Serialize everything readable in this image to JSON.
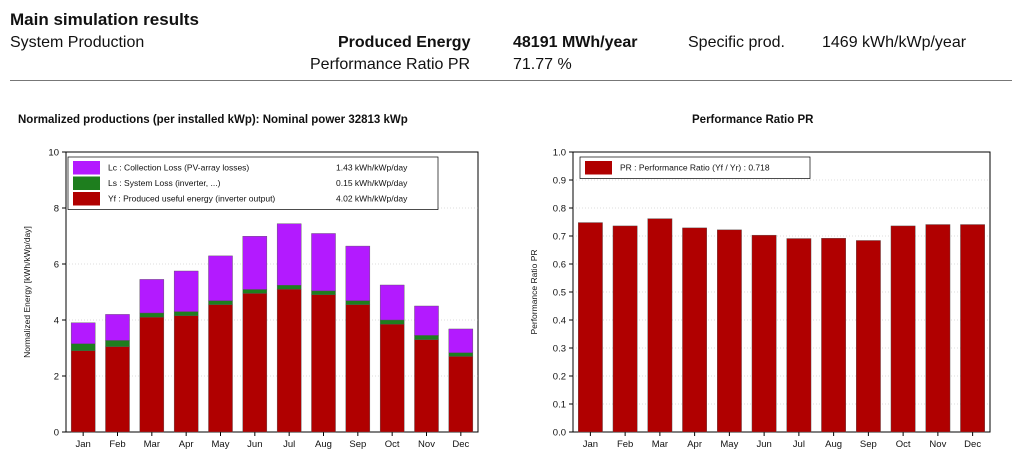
{
  "header": {
    "title": "Main simulation results",
    "subtitle": "System Production",
    "produced_energy_label": "Produced Energy",
    "produced_energy_value": "48191 MWh/year",
    "specific_prod_label": "Specific prod.",
    "specific_prod_value": "1469 kWh/kWp/year",
    "pr_label": "Performance Ratio PR",
    "pr_value": "71.77 %"
  },
  "chart_data": [
    {
      "type": "bar",
      "stacked": true,
      "title": "Normalized productions (per installed kWp):   Nominal power 32813 kWp",
      "xlabel": "",
      "ylabel": "Normalized   Energy   [kWh/kWp/day]",
      "ylim": [
        0,
        10
      ],
      "yticks": [
        0,
        2,
        4,
        6,
        8,
        10
      ],
      "grid": true,
      "legend_position": "top-left",
      "categories": [
        "Jan",
        "Feb",
        "Mar",
        "Apr",
        "May",
        "Jun",
        "Jul",
        "Aug",
        "Sep",
        "Oct",
        "Nov",
        "Dec"
      ],
      "series": [
        {
          "name": "Yf : Produced useful energy  (inverter output)",
          "annotation": "4.02 kWh/kWp/day",
          "color": "#b00000",
          "values": [
            2.9,
            3.05,
            4.1,
            4.15,
            4.55,
            4.95,
            5.1,
            4.9,
            4.55,
            3.85,
            3.3,
            2.7
          ]
        },
        {
          "name": "Ls : System Loss  (inverter, ...)",
          "annotation": "0.15 kWh/kWp/day",
          "color": "#1e7e1e",
          "values": [
            0.25,
            0.22,
            0.15,
            0.15,
            0.14,
            0.14,
            0.14,
            0.14,
            0.14,
            0.15,
            0.15,
            0.13
          ]
        },
        {
          "name": "Lc : Collection Loss (PV-array losses)",
          "annotation": "1.43 kWh/kWp/day",
          "color": "#b31aff",
          "values": [
            0.75,
            0.93,
            1.2,
            1.45,
            1.6,
            1.9,
            2.2,
            2.05,
            1.95,
            1.25,
            1.05,
            0.85
          ]
        }
      ]
    },
    {
      "type": "bar",
      "title": "Performance Ratio PR",
      "xlabel": "",
      "ylabel": "Performance Ratio   PR",
      "ylim": [
        0,
        1
      ],
      "yticks": [
        0,
        0.1,
        0.2,
        0.3,
        0.4,
        0.5,
        0.6,
        0.7,
        0.8,
        0.9,
        1.0
      ],
      "grid": true,
      "legend_position": "top-left",
      "categories": [
        "Jan",
        "Feb",
        "Mar",
        "Apr",
        "May",
        "Jun",
        "Jul",
        "Aug",
        "Sep",
        "Oct",
        "Nov",
        "Dec"
      ],
      "series": [
        {
          "name": "PR : Performance Ratio (Yf / Yr) :  0.718",
          "color": "#b00000",
          "values": [
            0.748,
            0.736,
            0.762,
            0.729,
            0.722,
            0.703,
            0.691,
            0.692,
            0.684,
            0.736,
            0.741,
            0.741
          ]
        }
      ]
    }
  ]
}
